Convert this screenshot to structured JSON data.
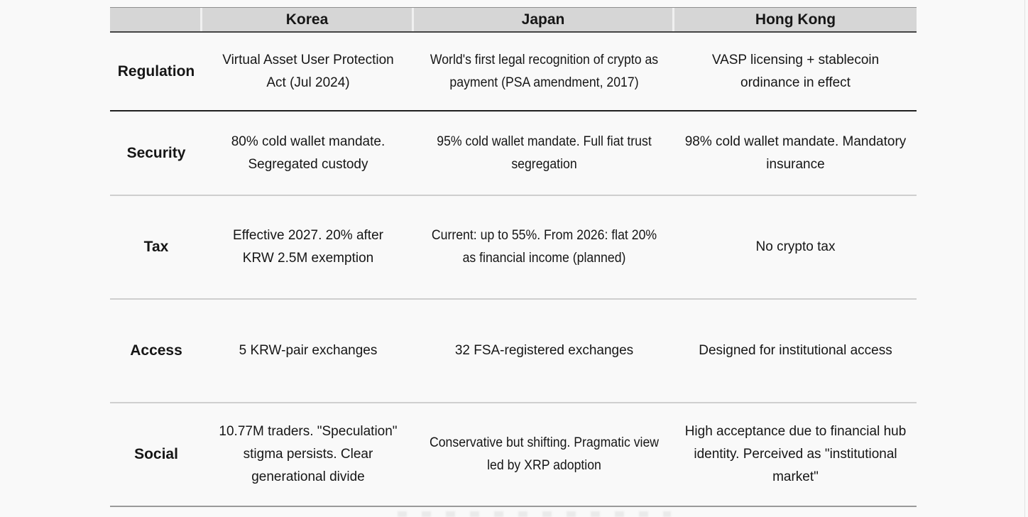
{
  "chart_data": {
    "type": "table",
    "title": "",
    "columns": [
      "",
      "Korea",
      "Japan",
      "Hong Kong"
    ],
    "row_labels": [
      "Regulation",
      "Security",
      "Tax",
      "Access",
      "Social"
    ],
    "rows": [
      {
        "label": "Regulation",
        "korea": "Virtual Asset User Protection\nAct (Jul 2024)",
        "japan": "World's first legal recognition of crypto as\npayment (PSA amendment, 2017)",
        "hongkong": "VASP licensing + stablecoin\nordinance in effect"
      },
      {
        "label": "Security",
        "korea": "80% cold wallet mandate.\nSegregated custody",
        "japan": "95% cold wallet mandate. Full fiat trust\nsegregation",
        "hongkong": "98% cold wallet mandate. Mandatory\ninsurance"
      },
      {
        "label": "Tax",
        "korea": "Effective 2027. 20% after\nKRW 2.5M exemption",
        "japan": "Current: up to 55%. From 2026: flat 20%\nas financial income (planned)",
        "hongkong": "No crypto tax"
      },
      {
        "label": "Access",
        "korea": "5 KRW-pair exchanges",
        "japan": "32 FSA-registered exchanges",
        "hongkong": "Designed for institutional access"
      },
      {
        "label": "Social",
        "korea": "10.77M traders. \"Speculation\"\nstigma persists. Clear\ngenerational divide",
        "japan": "Conservative but shifting. Pragmatic view\nled by XRP adoption",
        "hongkong": "High acceptance due to financial hub\nidentity. Perceived as \"institutional\nmarket\""
      }
    ],
    "colors": {
      "header_background": "#d6d6d6",
      "text": "#161616",
      "page_background": "#f9f9f9",
      "strong_rule": "#202020",
      "light_rule": "#cfcfcf"
    },
    "layout": {
      "grid": "horizontal-rules-only",
      "header_position": "top"
    }
  }
}
